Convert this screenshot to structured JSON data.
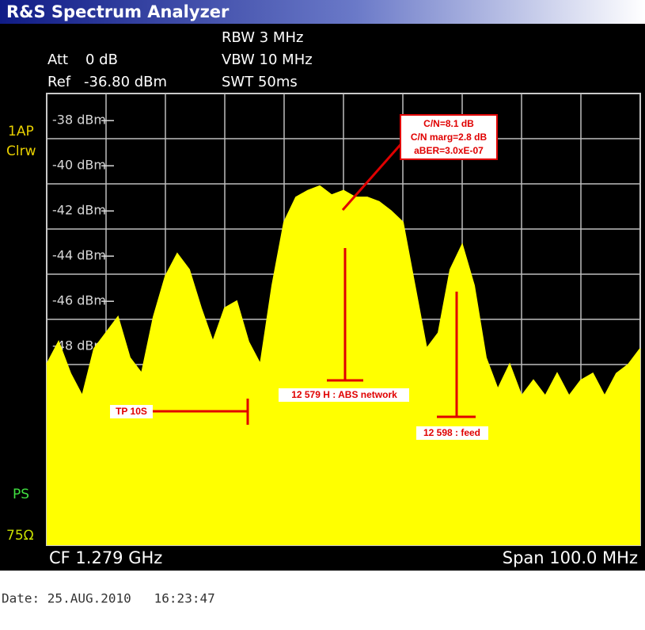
{
  "chart_data": {
    "type": "area",
    "title": "R&S Spectrum Analyzer",
    "settings": {
      "att_label": "Att",
      "att": "0 dB",
      "ref_label": "Ref",
      "ref": "-36.80 dBm",
      "rbw": "RBW 3 MHz",
      "vbw": "VBW 10 MHz",
      "swt": "SWT 50ms"
    },
    "side_labels": {
      "trace": "1AP",
      "mode": "Clrw",
      "ps": "PS",
      "impedance": "75Ω"
    },
    "center": "CF 1.279 GHz",
    "span": "Span 100.0 MHz",
    "date": "Date: 25.AUG.2010   16:23:47",
    "annotations": {
      "measurement": [
        "C/N=8.1 dB",
        "C/N marg=2.8 dB",
        "aBER=3.0xE-07"
      ],
      "abs": "12 579 H : ABS network",
      "tp": "TP 10S",
      "feed": "12 598 : feed"
    },
    "color": "#ffff00",
    "grid": true,
    "xlim": [
      1229,
      1329
    ],
    "ylim": [
      -56.8,
      -36.8
    ],
    "yticks": [
      {
        "value": -38,
        "label": "-38 dBm"
      },
      {
        "value": -40,
        "label": "-40 dBm"
      },
      {
        "value": -42,
        "label": "-42 dBm"
      },
      {
        "value": -44,
        "label": "-44 dBm"
      },
      {
        "value": -46,
        "label": "-46 dBm"
      },
      {
        "value": -48,
        "label": "-48 dBm"
      }
    ],
    "x": [
      1229,
      1231,
      1233,
      1235,
      1237,
      1239,
      1241,
      1243,
      1245,
      1247,
      1249,
      1251,
      1253,
      1255,
      1257,
      1259,
      1261,
      1263,
      1265,
      1267,
      1269,
      1271,
      1273,
      1275,
      1277,
      1279,
      1281,
      1283,
      1285,
      1287,
      1289,
      1291,
      1293,
      1295,
      1297,
      1299,
      1301,
      1303,
      1305,
      1307,
      1309,
      1311,
      1313,
      1315,
      1317,
      1319,
      1321,
      1323,
      1325,
      1327,
      1329
    ],
    "values": [
      -48.8,
      -47.8,
      -49.2,
      -50.2,
      -48.1,
      -47.4,
      -46.7,
      -48.5,
      -49.2,
      -46.7,
      -44.9,
      -43.9,
      -44.6,
      -46.3,
      -47.8,
      -46.3,
      -46.0,
      -47.8,
      -48.8,
      -45.3,
      -42.5,
      -41.4,
      -41.1,
      -40.9,
      -41.3,
      -41.1,
      -41.4,
      -41.4,
      -41.6,
      -42.0,
      -42.5,
      -45.3,
      -48.1,
      -47.4,
      -44.6,
      -43.5,
      -45.3,
      -48.5,
      -49.9,
      -48.8,
      -50.2,
      -49.5,
      -50.2,
      -49.2,
      -50.2,
      -49.5,
      -49.2,
      -50.2,
      -49.2,
      -48.8,
      -48.1
    ]
  }
}
